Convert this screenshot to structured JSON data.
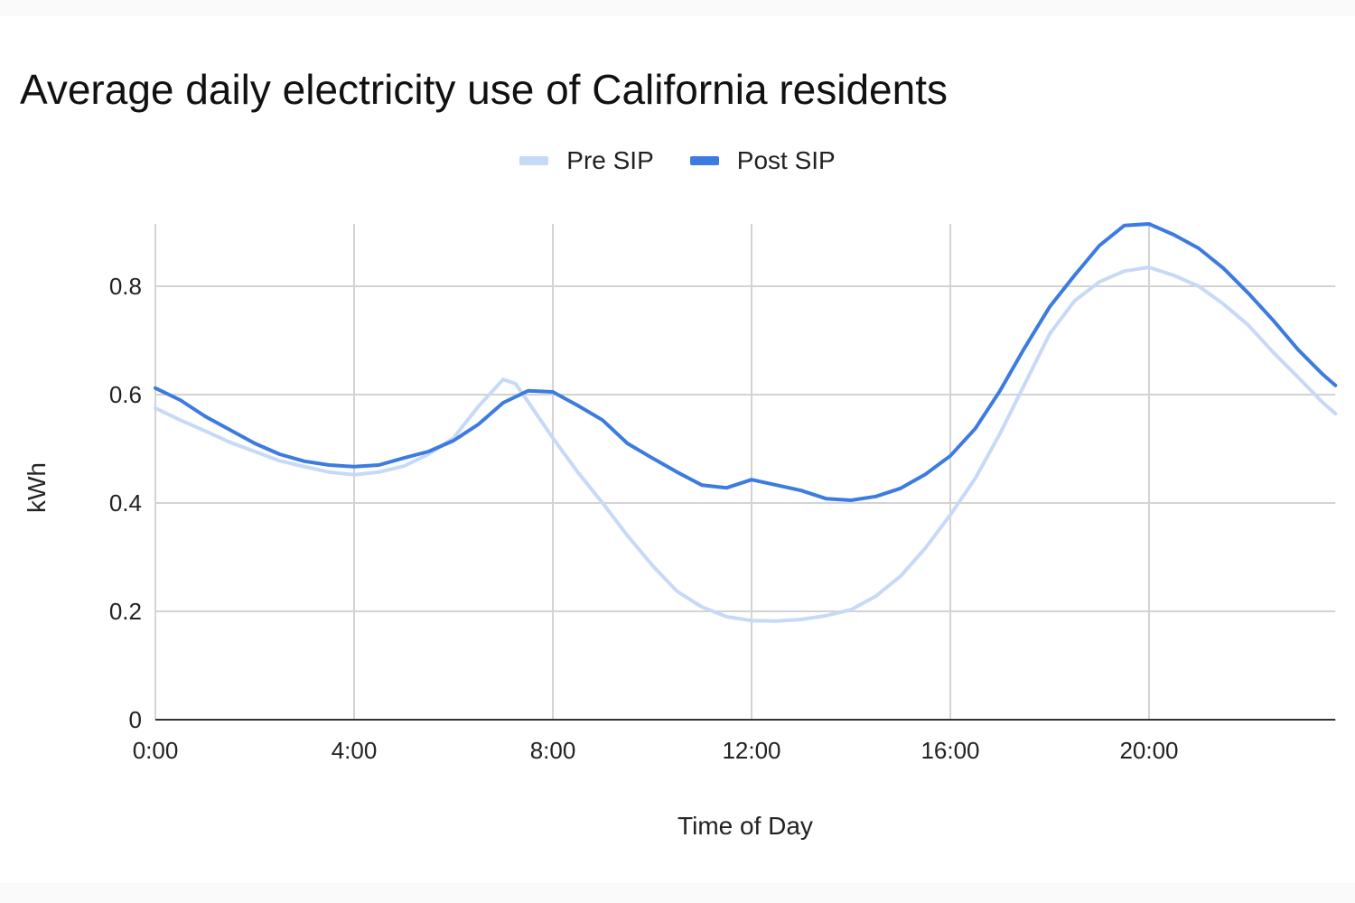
{
  "chart_data": {
    "type": "line",
    "title": "Average daily electricity use of California residents",
    "xlabel": "Time of Day",
    "ylabel": "kWh",
    "xlim": [
      0,
      23.75
    ],
    "ylim": [
      0,
      0.915
    ],
    "x_ticks": [
      "0:00",
      "4:00",
      "8:00",
      "12:00",
      "16:00",
      "20:00"
    ],
    "x_tick_hours": [
      0,
      4,
      8,
      12,
      16,
      20
    ],
    "y_ticks": [
      "0",
      "0.2",
      "0.4",
      "0.6",
      "0.8"
    ],
    "y_tick_values": [
      0,
      0.2,
      0.4,
      0.6,
      0.8
    ],
    "grid": true,
    "legend_position": "top",
    "series": [
      {
        "name": "Pre SIP",
        "color": "#c6d9f7",
        "x": [
          0,
          0.5,
          1,
          1.5,
          2,
          2.5,
          3,
          3.5,
          4,
          4.5,
          5,
          5.5,
          6,
          6.5,
          7,
          7.25,
          7.5,
          8,
          8.5,
          9,
          9.5,
          10,
          10.5,
          11,
          11.5,
          12,
          12.5,
          13,
          13.5,
          14,
          14.5,
          15,
          15.5,
          16,
          16.5,
          17,
          17.5,
          18,
          18.5,
          19,
          19.5,
          20,
          20.5,
          21,
          21.5,
          22,
          22.5,
          23,
          23.5,
          23.75
        ],
        "values": [
          0.575,
          0.553,
          0.533,
          0.512,
          0.495,
          0.478,
          0.467,
          0.457,
          0.452,
          0.457,
          0.468,
          0.49,
          0.52,
          0.578,
          0.628,
          0.62,
          0.587,
          0.52,
          0.457,
          0.4,
          0.34,
          0.285,
          0.237,
          0.208,
          0.19,
          0.183,
          0.182,
          0.185,
          0.192,
          0.203,
          0.228,
          0.265,
          0.317,
          0.378,
          0.445,
          0.528,
          0.62,
          0.712,
          0.773,
          0.808,
          0.828,
          0.835,
          0.82,
          0.8,
          0.767,
          0.728,
          0.678,
          0.632,
          0.585,
          0.565
        ]
      },
      {
        "name": "Post SIP",
        "color": "#3c7be0",
        "x": [
          0,
          0.5,
          1,
          1.5,
          2,
          2.5,
          3,
          3.5,
          4,
          4.5,
          5,
          5.5,
          6,
          6.5,
          7,
          7.5,
          8,
          8.5,
          9,
          9.5,
          10,
          10.5,
          11,
          11.5,
          12,
          12.5,
          13,
          13.5,
          14,
          14.5,
          15,
          15.5,
          16,
          16.5,
          17,
          17.5,
          18,
          18.5,
          19,
          19.5,
          20,
          20.5,
          21,
          21.5,
          22,
          22.5,
          23,
          23.5,
          23.75
        ],
        "values": [
          0.612,
          0.59,
          0.56,
          0.535,
          0.51,
          0.49,
          0.477,
          0.47,
          0.467,
          0.47,
          0.483,
          0.495,
          0.515,
          0.545,
          0.585,
          0.607,
          0.605,
          0.58,
          0.553,
          0.51,
          0.483,
          0.457,
          0.433,
          0.428,
          0.443,
          0.433,
          0.423,
          0.408,
          0.405,
          0.412,
          0.427,
          0.453,
          0.487,
          0.537,
          0.607,
          0.687,
          0.762,
          0.82,
          0.875,
          0.912,
          0.915,
          0.895,
          0.87,
          0.833,
          0.787,
          0.737,
          0.683,
          0.637,
          0.617
        ]
      }
    ]
  }
}
